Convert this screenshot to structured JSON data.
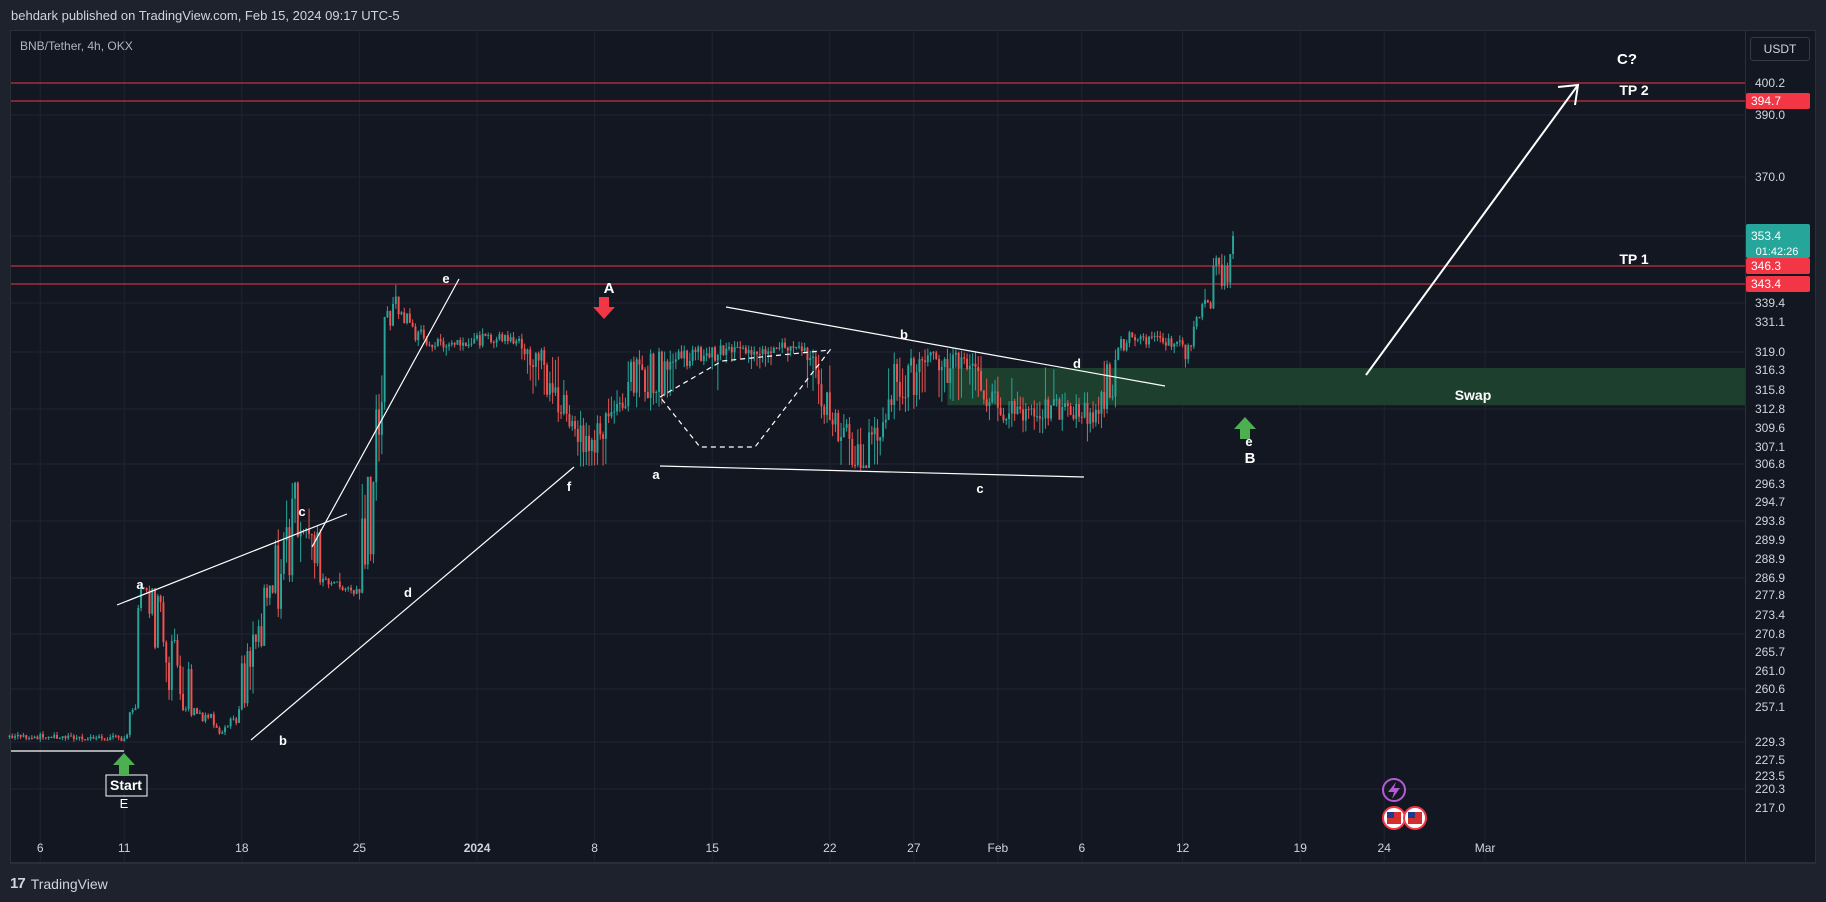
{
  "header": {
    "published_by": "behdark published on TradingView.com, Feb 15, 2024 09:17 UTC-5"
  },
  "symbol": {
    "info": "BNB/Tether, 4h, OKX",
    "currency": "USDT"
  },
  "footer": {
    "brand": "TradingView",
    "brand_mark": "17"
  },
  "colors": {
    "up": "#26a69a",
    "down": "#ef5350",
    "background": "#131722",
    "grid": "#1f2431",
    "line": "#ffffff",
    "level": "#f23645",
    "zone": "#1e4630",
    "marker_up": "#4caf50",
    "marker_down": "#f23645"
  },
  "chart_data": {
    "type": "candlestick",
    "symbol": "BNB/Tether",
    "interval": "4h",
    "exchange": "OKX",
    "x_ticks": [
      "6",
      "11",
      "18",
      "25",
      "2024",
      "8",
      "15",
      "22",
      "27",
      "Feb",
      "6",
      "12",
      "19",
      "24",
      "Mar"
    ],
    "y_ticks": [
      "400.2",
      "390.0",
      "370.0",
      "339.4",
      "331.1",
      "319.0",
      "316.3",
      "315.8",
      "312.8",
      "309.6",
      "307.1",
      "306.8",
      "296.3",
      "294.7",
      "293.8",
      "289.9",
      "288.9",
      "286.9",
      "277.8",
      "273.4",
      "270.8",
      "265.7",
      "261.0",
      "260.6",
      "257.1",
      "229.3",
      "227.5",
      "223.5",
      "220.3",
      "217.0"
    ],
    "price_labels": [
      {
        "value": "394.7",
        "kind": "level"
      },
      {
        "value": "353.4",
        "kind": "last",
        "sub": "01:42:26"
      },
      {
        "value": "346.3",
        "kind": "level"
      },
      {
        "value": "343.4",
        "kind": "level"
      }
    ],
    "horizontal_levels": [
      400.2,
      394.7,
      346.3,
      343.4
    ],
    "level_labels": [
      "C?",
      "TP 2",
      "TP 1"
    ],
    "zone_label": "Swap",
    "wave_labels": [
      "Start",
      "E",
      "a",
      "b",
      "c",
      "d",
      "e",
      "f",
      "A",
      "a",
      "b",
      "c",
      "d",
      "e",
      "B"
    ],
    "keypoints": [
      {
        "date": "Dec 4",
        "price": 234
      },
      {
        "date": "Dec 11",
        "price": 232
      },
      {
        "date": "Dec 12",
        "price": 282
      },
      {
        "date": "Dec 17",
        "price": 241
      },
      {
        "date": "Dec 21",
        "price": 295
      },
      {
        "date": "Dec 25",
        "price": 279
      },
      {
        "date": "Dec 27",
        "price": 339
      },
      {
        "date": "Dec 29",
        "price": 322
      },
      {
        "date": "Jan 3",
        "price": 325
      },
      {
        "date": "Jan 4",
        "price": 320
      },
      {
        "date": "Jan 8",
        "price": 307
      },
      {
        "date": "Jan 10",
        "price": 316
      },
      {
        "date": "Jan 14",
        "price": 319
      },
      {
        "date": "Jan 20",
        "price": 321
      },
      {
        "date": "Jan 22",
        "price": 311
      },
      {
        "date": "Jan 24",
        "price": 306
      },
      {
        "date": "Jan 26",
        "price": 316
      },
      {
        "date": "Jan 30",
        "price": 318
      },
      {
        "date": "Feb 1",
        "price": 313
      },
      {
        "date": "Feb 7",
        "price": 312
      },
      {
        "date": "Feb 9",
        "price": 325
      },
      {
        "date": "Feb 12",
        "price": 322
      },
      {
        "date": "Feb 15",
        "price": 353.4
      }
    ],
    "last_price": 353.4,
    "countdown": "01:42:26"
  }
}
